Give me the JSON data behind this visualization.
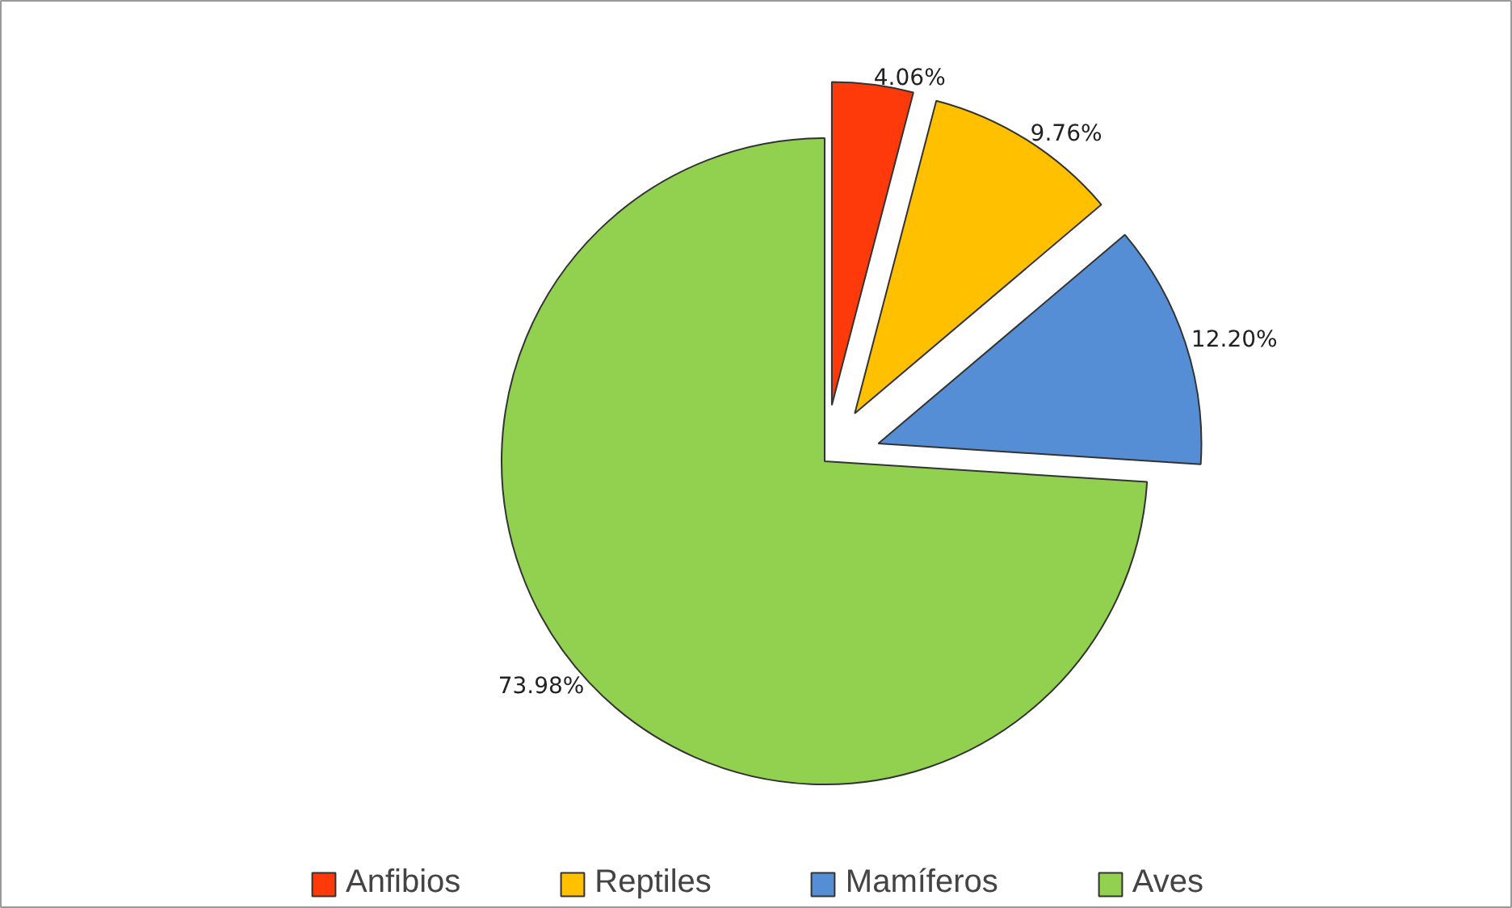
{
  "chart_data": {
    "type": "pie",
    "categories": [
      "Anfibios",
      "Reptiles",
      "Mamíferos",
      "Aves"
    ],
    "values": [
      4.06,
      9.76,
      12.2,
      73.98
    ],
    "colors": [
      "#ff3a0a",
      "#ffc000",
      "#558ed5",
      "#92d050"
    ],
    "value_labels": [
      "4.06%",
      "9.76%",
      "12.20%",
      "73.98%"
    ],
    "legend": "bottom"
  }
}
